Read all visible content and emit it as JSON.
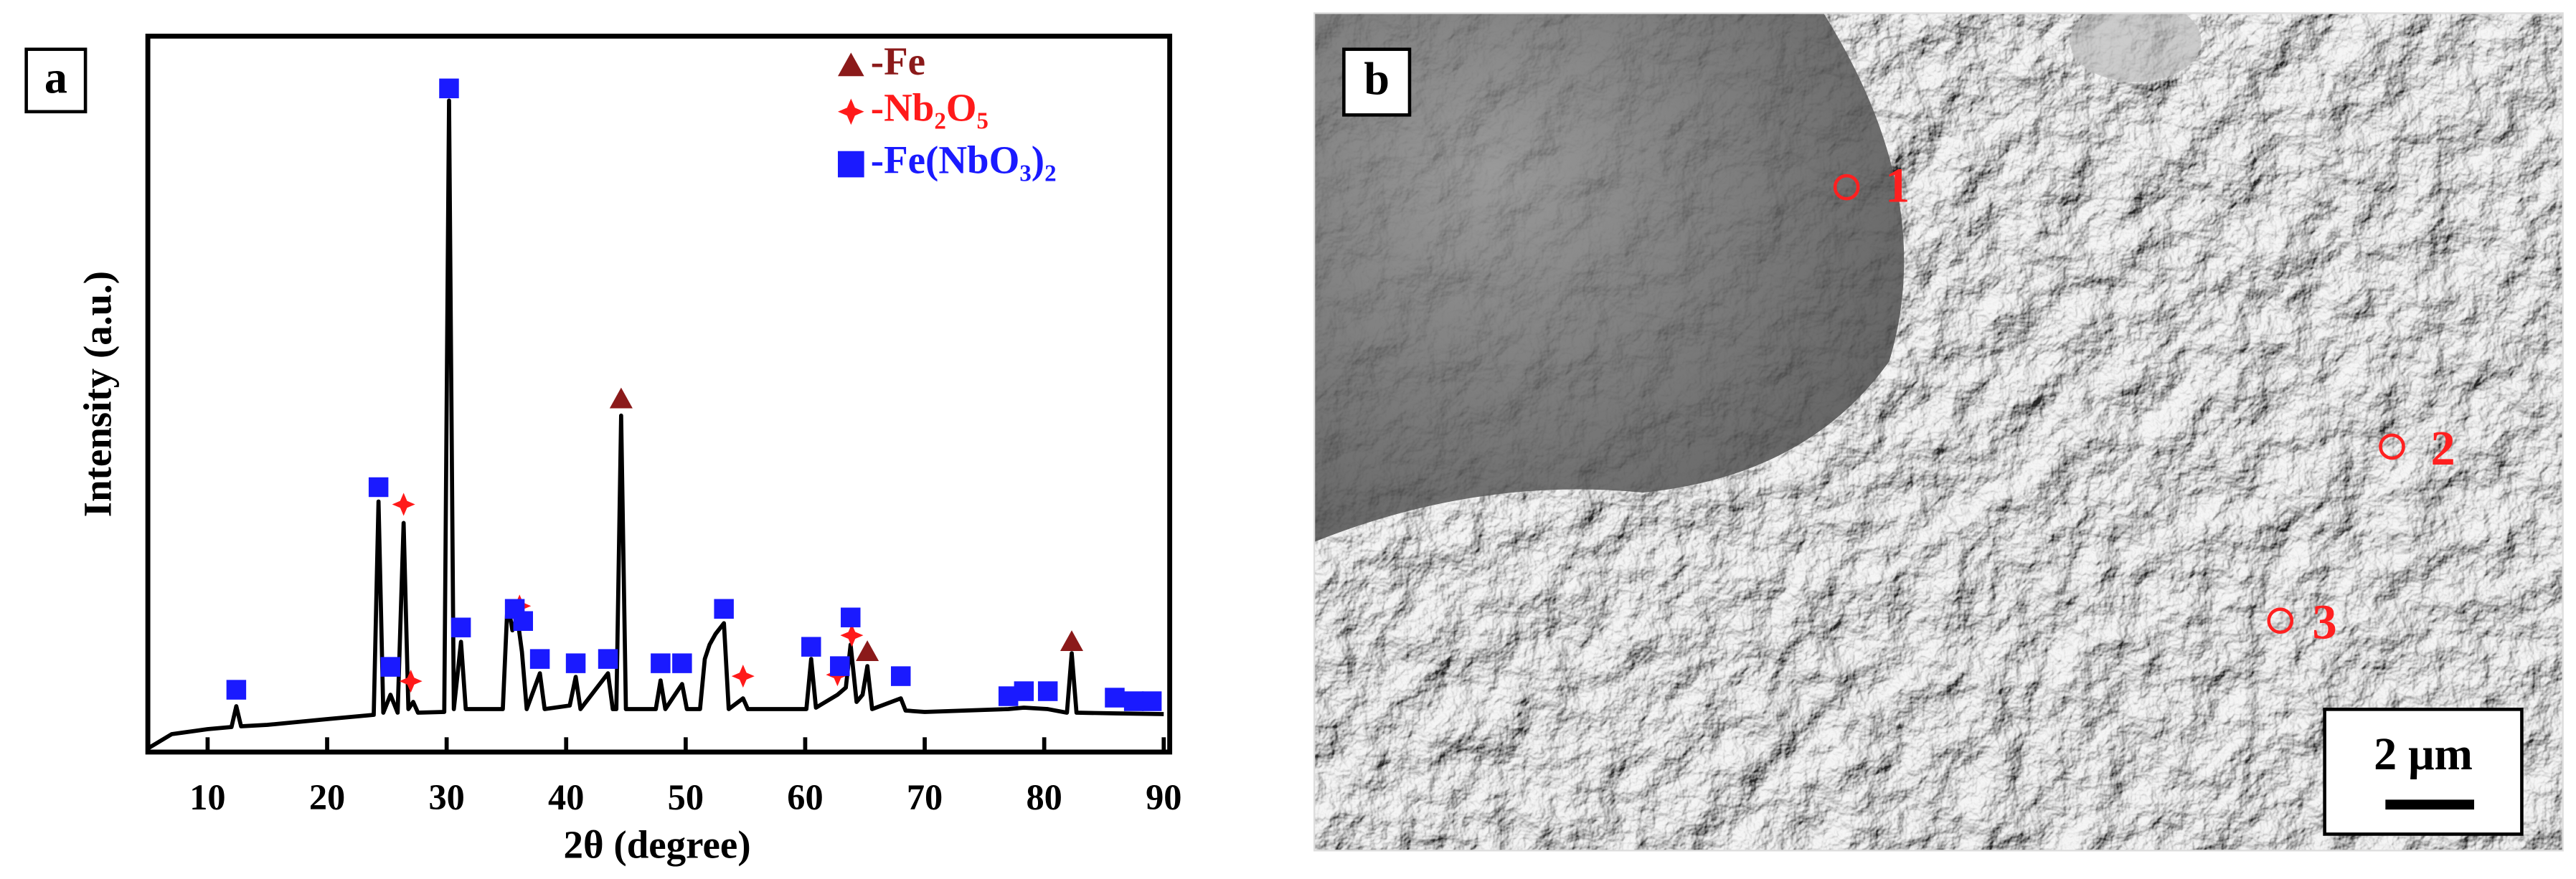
{
  "chart_data": {
    "type": "line",
    "panel_label": "a",
    "xlabel": "2θ (degree)",
    "ylabel": "Intensity (a.u.)",
    "xlim": [
      5,
      90.5
    ],
    "ylim": [
      0,
      100
    ],
    "xticks": [
      10,
      20,
      30,
      40,
      50,
      60,
      70,
      80,
      90
    ],
    "legend": "upper right",
    "color": "#000000",
    "x": [
      5,
      7,
      10,
      12.0,
      12.4,
      12.8,
      15,
      20,
      23.9,
      24.3,
      24.7,
      25.3,
      25.9,
      26.4,
      26.8,
      27.2,
      27.6,
      29.8,
      30.2,
      30.6,
      31.2,
      31.6,
      34.7,
      35.1,
      35.5,
      35.9,
      36.3,
      36.7,
      37.8,
      38.2,
      40.3,
      40.8,
      41.2,
      43.5,
      43.9,
      44.2,
      44.6,
      45.0,
      47.5,
      47.9,
      48.3,
      49.7,
      50.1,
      51.2,
      51.6,
      52.0,
      52.5,
      53.2,
      53.6,
      54.8,
      55.2,
      60.1,
      60.5,
      60.9,
      62.7,
      63.4,
      63.8,
      64.3,
      64.8,
      65.2,
      65.6,
      68,
      68.4,
      70,
      77,
      78.3,
      80.3,
      81.9,
      82.3,
      82.7,
      86,
      90
    ],
    "values": [
      0.5,
      2.5,
      3.2,
      3.5,
      6.4,
      3.6,
      3.8,
      4.6,
      5.2,
      35,
      5.5,
      8,
      5.5,
      32,
      6,
      7,
      5.5,
      5.6,
      91,
      6,
      15.4,
      6,
      6,
      21,
      17,
      19,
      14,
      6,
      11,
      6,
      6.5,
      10.5,
      6,
      11,
      6,
      6,
      47,
      6,
      6,
      10,
      6,
      9.5,
      6,
      6,
      13,
      15,
      16.5,
      18,
      6,
      7.5,
      6,
      6,
      13,
      6.2,
      8,
      9,
      15,
      7,
      8,
      12,
      6,
      7.5,
      5.8,
      5.6,
      6,
      6.2,
      6,
      5.5,
      13.8,
      5.5,
      5.4,
      5.3
    ],
    "series": [
      {
        "name": "-Fe",
        "type": "scatter",
        "marker": "triangle",
        "color": "#8b1a1a",
        "x": [
          44.6,
          65.2,
          82.3
        ],
        "values": [
          49.3,
          14,
          15.4
        ]
      },
      {
        "name": "-Nb₂O₅",
        "type": "scatter",
        "marker": "star",
        "color": "#ff1a1a",
        "x": [
          26.4,
          27.0,
          36.1,
          54.8,
          62.7,
          63.9
        ],
        "values": [
          34.6,
          9.9,
          20.4,
          10.6,
          10.8,
          16.3
        ]
      },
      {
        "name": "-Fe(NbO₃)₂",
        "type": "scatter",
        "marker": "square",
        "color": "#1a1aff",
        "x": [
          12.4,
          24.3,
          25.3,
          30.2,
          31.2,
          35.7,
          36.4,
          37.8,
          40.8,
          43.5,
          47.9,
          49.7,
          53.2,
          60.5,
          62.9,
          63.8,
          68,
          77,
          78.3,
          80.3,
          85.9,
          87.5,
          89
        ],
        "values": [
          8.7,
          37,
          11.9,
          92.7,
          17.4,
          20,
          18.3,
          13,
          12.4,
          13,
          12.4,
          12.4,
          20,
          14.7,
          12,
          18.8,
          10.6,
          7.8,
          8.5,
          8.5,
          7.6,
          7.1,
          7.1
        ]
      }
    ]
  },
  "image": {
    "panel_label": "b",
    "points": [
      "1",
      "2",
      "3"
    ],
    "scale_bar": "2 μm"
  }
}
